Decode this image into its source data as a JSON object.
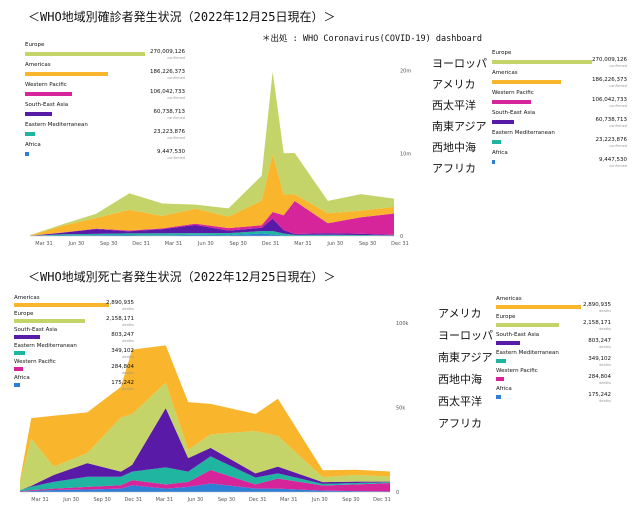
{
  "cases_section": {
    "heading": "＜WHO地域別確診者発生状況（2022年12月25日現在）＞",
    "source": "＊出処 : WHO Coronavirus(COVID-19) dashboard",
    "jp_labels": [
      "ヨーロッパ",
      "アメリカ",
      "西太平洋",
      "南東アジア",
      "西地中海",
      "アフリカ"
    ],
    "legend": [
      {
        "name": "Europe",
        "value": "270,009,126",
        "unit": "confirmed"
      },
      {
        "name": "Americas",
        "value": "186,226,373",
        "unit": "confirmed"
      },
      {
        "name": "Western Pacific",
        "value": "106,042,733",
        "unit": "confirmed"
      },
      {
        "name": "South-East Asia",
        "value": "60,738,713",
        "unit": "confirmed"
      },
      {
        "name": "Eastern Mediterranean",
        "value": "23,223,876",
        "unit": "confirmed"
      },
      {
        "name": "Africa",
        "value": "9,447,530",
        "unit": "confirmed"
      }
    ]
  },
  "deaths_section": {
    "heading": "＜WHO地域別死亡者発生状況（2022年12月25日現在）＞",
    "jp_labels": [
      "アメリカ",
      "ヨーロッパ",
      "南東アジア",
      "西地中海",
      "西太平洋",
      "アフリカ"
    ],
    "legend": [
      {
        "name": "Americas",
        "value": "2,890,935",
        "unit": "deaths"
      },
      {
        "name": "Europe",
        "value": "2,158,171",
        "unit": "deaths"
      },
      {
        "name": "South-East Asia",
        "value": "803,247",
        "unit": "deaths"
      },
      {
        "name": "Eastern Mediterranean",
        "value": "349,102",
        "unit": "deaths"
      },
      {
        "name": "Western Pacific",
        "value": "284,804",
        "unit": "deaths"
      },
      {
        "name": "Africa",
        "value": "175,242",
        "unit": "deaths"
      }
    ]
  },
  "colors": {
    "Europe": "#c4d468",
    "Americas": "#f9b52b",
    "Western Pacific": "#d6259b",
    "South-East Asia": "#5a1aa8",
    "Eastern Mediterranean": "#1fb5a0",
    "Africa": "#2d7fd6"
  },
  "chart_data": [
    {
      "type": "area",
      "stacked": true,
      "x_ticks": [
        "Mar 31",
        "Jun 30",
        "Sep 30",
        "Dec 31",
        "Mar 31",
        "Jun 30",
        "Sep 30",
        "Dec 31",
        "Mar 31",
        "Jun 30",
        "Sep 30",
        "Dec 31"
      ],
      "y_ticks": [
        "0",
        "10m",
        "20m"
      ],
      "ylim": [
        0,
        23000000
      ],
      "x": [
        "2020-03",
        "2020-06",
        "2020-09",
        "2020-12",
        "2021-03",
        "2021-06",
        "2021-09",
        "2021-12",
        "2022-01",
        "2022-02",
        "2022-03",
        "2022-06",
        "2022-09",
        "2022-12"
      ],
      "series": [
        {
          "name": "Africa",
          "values": [
            0,
            60000,
            100000,
            120000,
            80000,
            150000,
            100000,
            300000,
            200000,
            60000,
            40000,
            50000,
            20000,
            20000
          ]
        },
        {
          "name": "Eastern Mediterranean",
          "values": [
            20000,
            150000,
            150000,
            200000,
            250000,
            200000,
            250000,
            300000,
            400000,
            250000,
            100000,
            100000,
            100000,
            60000
          ]
        },
        {
          "name": "South-East Asia",
          "values": [
            0,
            200000,
            600000,
            250000,
            500000,
            1000000,
            300000,
            400000,
            1500000,
            400000,
            100000,
            200000,
            150000,
            50000
          ]
        },
        {
          "name": "Western Pacific",
          "values": [
            10000,
            30000,
            50000,
            100000,
            100000,
            150000,
            300000,
            300000,
            800000,
            1800000,
            4000000,
            1200000,
            2000000,
            2600000
          ]
        },
        {
          "name": "Americas",
          "values": [
            30000,
            800000,
            1300000,
            2500000,
            1500000,
            1800000,
            1400000,
            3000000,
            7000000,
            2500000,
            800000,
            1200000,
            800000,
            800000
          ]
        },
        {
          "name": "Europe",
          "values": [
            50000,
            200000,
            500000,
            2000000,
            1500000,
            500000,
            1000000,
            3000000,
            10000000,
            5000000,
            5000000,
            1500000,
            2000000,
            1000000
          ]
        }
      ]
    },
    {
      "type": "area",
      "stacked": true,
      "x_ticks": [
        "Mar 31",
        "Jun 30",
        "Sep 30",
        "Dec 31",
        "Mar 31",
        "Jun 30",
        "Sep 30",
        "Dec 31",
        "Mar 31",
        "Jun 30",
        "Sep 30",
        "Dec 31"
      ],
      "y_ticks": [
        "0",
        "50k",
        "100k"
      ],
      "ylim": [
        0,
        105000
      ],
      "x": [
        "2020-03",
        "2020-04",
        "2020-06",
        "2020-09",
        "2020-12",
        "2021-01",
        "2021-04",
        "2021-06",
        "2021-08",
        "2021-12",
        "2022-02",
        "2022-06",
        "2022-09",
        "2022-12"
      ],
      "series": [
        {
          "name": "Africa",
          "values": [
            200,
            600,
            1200,
            1500,
            2000,
            4000,
            2000,
            3000,
            5000,
            2000,
            2000,
            800,
            500,
            300
          ]
        },
        {
          "name": "Western Pacific",
          "values": [
            300,
            500,
            800,
            1500,
            2000,
            3000,
            2500,
            3000,
            8000,
            2500,
            6000,
            3000,
            4000,
            5000
          ]
        },
        {
          "name": "Eastern Mediterranean",
          "values": [
            500,
            2000,
            4000,
            6000,
            5000,
            5000,
            10000,
            6000,
            8000,
            4000,
            3000,
            1000,
            800,
            500
          ]
        },
        {
          "name": "South-East Asia",
          "values": [
            0,
            500,
            4000,
            8000,
            3000,
            4000,
            35000,
            8000,
            5000,
            2500,
            4000,
            1000,
            800,
            300
          ]
        },
        {
          "name": "Europe",
          "values": [
            5000,
            28000,
            5000,
            6000,
            32000,
            30000,
            15000,
            5000,
            8000,
            25000,
            18000,
            3000,
            4000,
            3000
          ]
        },
        {
          "name": "Americas",
          "values": [
            1000,
            12000,
            30000,
            24000,
            18000,
            38000,
            22000,
            28000,
            18000,
            10000,
            22000,
            4000,
            3000,
            3000
          ]
        }
      ]
    }
  ]
}
